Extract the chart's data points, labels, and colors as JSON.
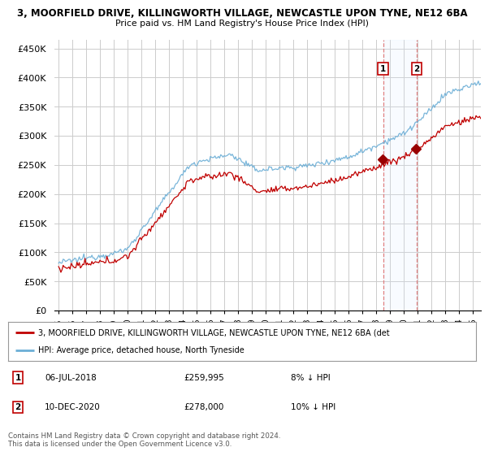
{
  "title1": "3, MOORFIELD DRIVE, KILLINGWORTH VILLAGE, NEWCASTLE UPON TYNE, NE12 6BA",
  "title2": "Price paid vs. HM Land Registry's House Price Index (HPI)",
  "ylim": [
    0,
    460000
  ],
  "yticks": [
    0,
    50000,
    100000,
    150000,
    200000,
    250000,
    300000,
    350000,
    400000,
    450000
  ],
  "ytick_labels": [
    "£0",
    "£50K",
    "£100K",
    "£150K",
    "£200K",
    "£250K",
    "£300K",
    "£350K",
    "£400K",
    "£450K"
  ],
  "hpi_color": "#6baed6",
  "price_color": "#c00000",
  "sale1_date_label": "06-JUL-2018",
  "sale1_price": 259995,
  "sale1_year": 2018.51,
  "sale1_hpi_pct": "8% ↓ HPI",
  "sale2_date_label": "10-DEC-2020",
  "sale2_price": 278000,
  "sale2_year": 2020.94,
  "sale2_hpi_pct": "10% ↓ HPI",
  "legend_label_price": "3, MOORFIELD DRIVE, KILLINGWORTH VILLAGE, NEWCASTLE UPON TYNE, NE12 6BA (det",
  "legend_label_hpi": "HPI: Average price, detached house, North Tyneside",
  "footer": "Contains HM Land Registry data © Crown copyright and database right 2024.\nThis data is licensed under the Open Government Licence v3.0.",
  "background_color": "#ffffff",
  "grid_color": "#cccccc",
  "vline_color": "#e08080",
  "span_color": "#ddeeff",
  "sale_marker_color": "#990000"
}
